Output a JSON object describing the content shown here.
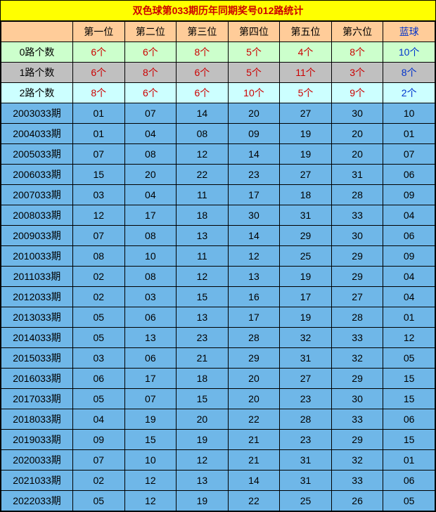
{
  "title": "双色球第033期历年同期奖号012路统计",
  "colors": {
    "title_bg": "#ffff00",
    "title_text": "#cc0000",
    "header_bg": "#ffcc99",
    "stat0_bg": "#ccffcc",
    "stat1_bg": "#c0c0c0",
    "stat2_bg": "#ccffff",
    "data_bg": "#6fb7e8",
    "red": "#cc0000",
    "blue": "#0033cc",
    "border": "#000000"
  },
  "columns": {
    "period_label": "",
    "pos1": "第一位",
    "pos2": "第二位",
    "pos3": "第三位",
    "pos4": "第四位",
    "pos5": "第五位",
    "pos6": "第六位",
    "blueball": "蓝球"
  },
  "stats": [
    {
      "label": "0路个数",
      "cells": [
        "6个",
        "6个",
        "8个",
        "5个",
        "4个",
        "8个",
        "10个"
      ],
      "row_class": "stat0"
    },
    {
      "label": "1路个数",
      "cells": [
        "6个",
        "8个",
        "6个",
        "5个",
        "11个",
        "3个",
        "8个"
      ],
      "row_class": "stat1"
    },
    {
      "label": "2路个数",
      "cells": [
        "8个",
        "6个",
        "6个",
        "10个",
        "5个",
        "9个",
        "2个"
      ],
      "row_class": "stat2"
    }
  ],
  "data_rows": [
    {
      "period": "2003033期",
      "v": [
        "01",
        "07",
        "14",
        "20",
        "27",
        "30",
        "10"
      ]
    },
    {
      "period": "2004033期",
      "v": [
        "01",
        "04",
        "08",
        "09",
        "19",
        "20",
        "01"
      ]
    },
    {
      "period": "2005033期",
      "v": [
        "07",
        "08",
        "12",
        "14",
        "19",
        "20",
        "07"
      ]
    },
    {
      "period": "2006033期",
      "v": [
        "15",
        "20",
        "22",
        "23",
        "27",
        "31",
        "06"
      ]
    },
    {
      "period": "2007033期",
      "v": [
        "03",
        "04",
        "11",
        "17",
        "18",
        "28",
        "09"
      ]
    },
    {
      "period": "2008033期",
      "v": [
        "12",
        "17",
        "18",
        "30",
        "31",
        "33",
        "04"
      ]
    },
    {
      "period": "2009033期",
      "v": [
        "07",
        "08",
        "13",
        "14",
        "29",
        "30",
        "06"
      ]
    },
    {
      "period": "2010033期",
      "v": [
        "08",
        "10",
        "11",
        "12",
        "25",
        "29",
        "09"
      ]
    },
    {
      "period": "2011033期",
      "v": [
        "02",
        "08",
        "12",
        "13",
        "19",
        "29",
        "04"
      ]
    },
    {
      "period": "2012033期",
      "v": [
        "02",
        "03",
        "15",
        "16",
        "17",
        "27",
        "04"
      ]
    },
    {
      "period": "2013033期",
      "v": [
        "05",
        "06",
        "13",
        "17",
        "19",
        "28",
        "01"
      ]
    },
    {
      "period": "2014033期",
      "v": [
        "05",
        "13",
        "23",
        "28",
        "32",
        "33",
        "12"
      ]
    },
    {
      "period": "2015033期",
      "v": [
        "03",
        "06",
        "21",
        "29",
        "31",
        "32",
        "05"
      ]
    },
    {
      "period": "2016033期",
      "v": [
        "06",
        "17",
        "18",
        "20",
        "27",
        "29",
        "15"
      ]
    },
    {
      "period": "2017033期",
      "v": [
        "05",
        "07",
        "15",
        "20",
        "23",
        "30",
        "15"
      ]
    },
    {
      "period": "2018033期",
      "v": [
        "04",
        "19",
        "20",
        "22",
        "28",
        "33",
        "06"
      ]
    },
    {
      "period": "2019033期",
      "v": [
        "09",
        "15",
        "19",
        "21",
        "23",
        "29",
        "15"
      ]
    },
    {
      "period": "2020033期",
      "v": [
        "07",
        "10",
        "12",
        "21",
        "31",
        "32",
        "01"
      ]
    },
    {
      "period": "2021033期",
      "v": [
        "02",
        "12",
        "13",
        "14",
        "31",
        "33",
        "06"
      ]
    },
    {
      "period": "2022033期",
      "v": [
        "05",
        "12",
        "19",
        "22",
        "25",
        "26",
        "05"
      ]
    }
  ]
}
